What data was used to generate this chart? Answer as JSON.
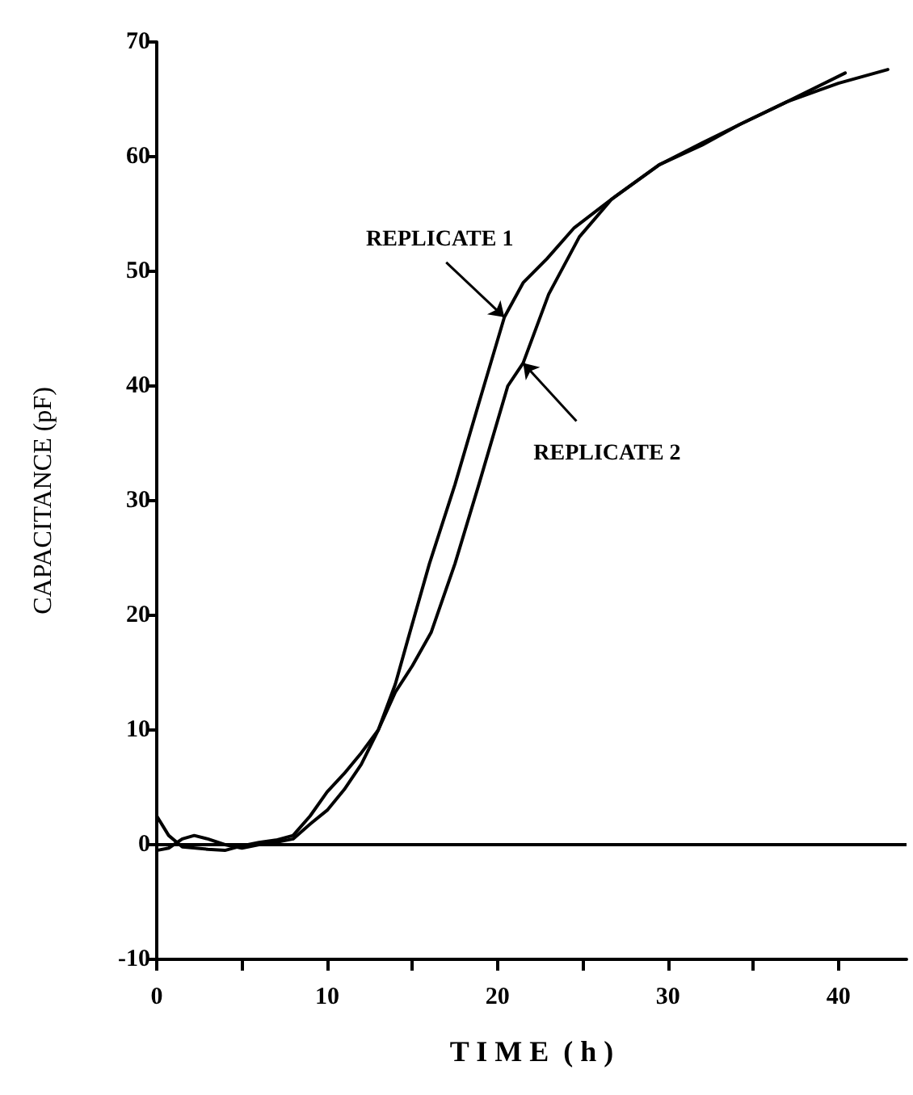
{
  "chart_data": {
    "type": "line",
    "xlabel": "T I M E  ( h )",
    "ylabel": "CAPACITANCE (pF)",
    "xlim": [
      0,
      44
    ],
    "ylim": [
      -10,
      70
    ],
    "xticks": [
      0,
      {
        "value": 5,
        "label": null
      },
      10,
      {
        "value": 15,
        "label": null
      },
      20,
      {
        "value": 25,
        "label": null
      },
      30,
      {
        "value": 35,
        "label": null
      },
      40
    ],
    "yticks": [
      -10,
      0,
      10,
      20,
      30,
      40,
      50,
      60,
      70
    ],
    "grid": false,
    "marker": "none",
    "line_style": "solid",
    "ref_lines": [
      {
        "axis": "y",
        "value": 0,
        "color": "#000000"
      }
    ],
    "annotations": [
      {
        "text": "REPLICATE 1",
        "x": 20.4,
        "y": 46
      },
      {
        "text": "REPLICATE 2",
        "x": 21.5,
        "y": 42
      }
    ],
    "series": [
      {
        "color": "#000000",
        "x": [
          0,
          0.7,
          1.5,
          3,
          4,
          5,
          6,
          7,
          8,
          9,
          10,
          11,
          12,
          13,
          14,
          14.7,
          16,
          17.5,
          19,
          20.4,
          21.5,
          22.9,
          24.5,
          26.7,
          29.5,
          32,
          34.2,
          37,
          40,
          42.9
        ],
        "values": [
          2.5,
          0.8,
          -0.2,
          -0.4,
          -0.5,
          -0.1,
          0.2,
          0.4,
          0.8,
          2.5,
          4.6,
          6.2,
          8,
          10,
          14,
          17.7,
          24.5,
          31.4,
          39,
          46,
          49,
          51.1,
          53.8,
          56.3,
          59.3,
          61.2,
          62.8,
          64.8,
          66.4,
          67.6
        ]
      },
      {
        "color": "#000000",
        "x": [
          0,
          0.7,
          1.5,
          2.2,
          3,
          4,
          5,
          6,
          7,
          8,
          9,
          10,
          11,
          12,
          13,
          14,
          15,
          16.1,
          17.5,
          18.9,
          20.6,
          21.5,
          23,
          24.8,
          26.7,
          29.5,
          32,
          34.2,
          37,
          40.4
        ],
        "values": [
          -0.5,
          -0.3,
          0.5,
          0.8,
          0.5,
          0,
          -0.3,
          0,
          0.2,
          0.5,
          1.8,
          3,
          4.8,
          7,
          10,
          13.3,
          15.6,
          18.5,
          24.5,
          31.4,
          40,
          42,
          48,
          53,
          56.3,
          59.3,
          61,
          62.8,
          64.8,
          67.3
        ]
      }
    ]
  }
}
